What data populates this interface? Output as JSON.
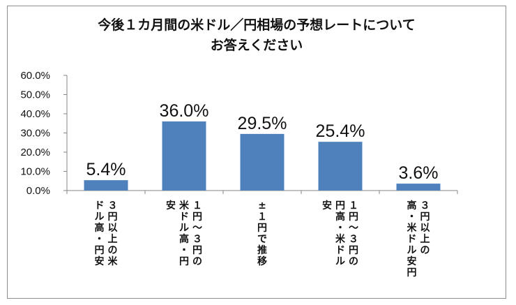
{
  "chart_data": {
    "type": "bar",
    "title": [
      "今後１カ月間の米ドル／円相場の予想レートについて",
      "お答えください"
    ],
    "categories": [
      [
        "３円以上の米",
        "ドル高・円安"
      ],
      [
        "１円～３円の",
        "米ドル高・円",
        "安"
      ],
      [
        "±１円で推移"
      ],
      [
        "１円～３円の",
        "円高・米ドル",
        "安"
      ],
      [
        "３円以上の",
        "高・米ドル安円"
      ]
    ],
    "values": [
      5.4,
      36.0,
      29.5,
      25.4,
      3.6
    ],
    "value_labels": [
      "5.4%",
      "36.0%",
      "29.5%",
      "25.4%",
      "3.6%"
    ],
    "yticks": [
      "0.0%",
      "10.0%",
      "20.0%",
      "30.0%",
      "40.0%",
      "50.0%",
      "60.0%"
    ],
    "ylim": [
      0,
      60
    ],
    "xlabel": "",
    "ylabel": "",
    "grid": false,
    "bar_color": "#4f81bd"
  }
}
